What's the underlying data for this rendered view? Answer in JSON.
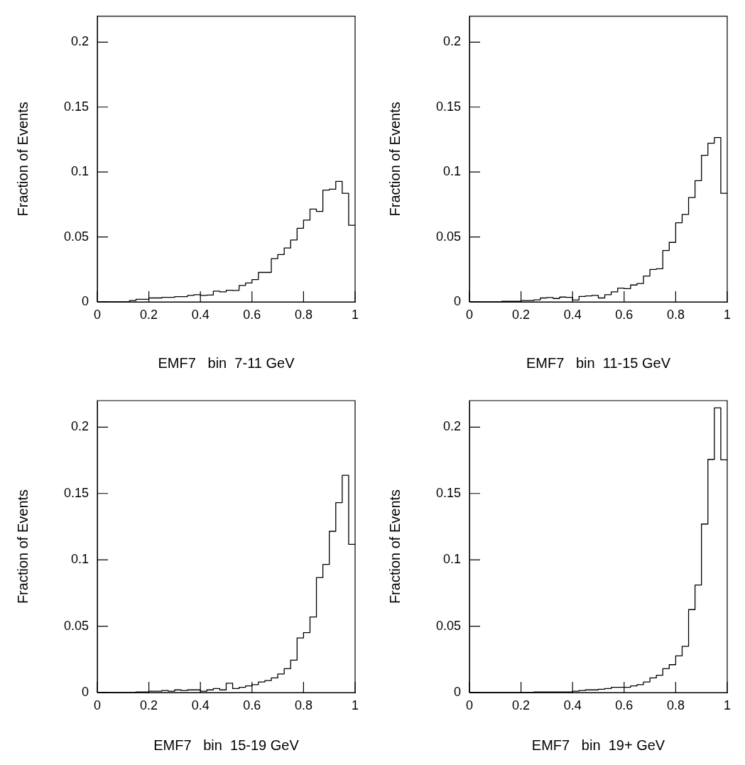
{
  "chart_data": [
    {
      "type": "histogram",
      "xlabel": "EMF7   bin  7-11 GeV",
      "ylabel": "Fraction of Events",
      "color": "#000000",
      "xlim": [
        0,
        1
      ],
      "ylim": [
        0,
        0.22
      ],
      "xticks": [
        0,
        0.2,
        0.4,
        0.6,
        0.8,
        1
      ],
      "yticks": [
        0,
        0.05,
        0.1,
        0.15,
        0.2
      ],
      "grid": false,
      "legend": false,
      "bins": [
        0,
        0.025,
        0.05,
        0.075,
        0.1,
        0.125,
        0.15,
        0.175,
        0.2,
        0.225,
        0.25,
        0.275,
        0.3,
        0.325,
        0.35,
        0.375,
        0.4,
        0.425,
        0.45,
        0.475,
        0.5,
        0.525,
        0.55,
        0.575,
        0.6,
        0.625,
        0.65,
        0.675,
        0.7,
        0.725,
        0.75,
        0.775,
        0.8,
        0.825,
        0.85,
        0.875,
        0.9,
        0.925,
        0.95,
        0.975,
        1
      ],
      "values": [
        0,
        0,
        0,
        0,
        0,
        0.001,
        0.002,
        0.002,
        0.003,
        0.003,
        0.0035,
        0.0035,
        0.004,
        0.004,
        0.005,
        0.0055,
        0.005,
        0.0053,
        0.0083,
        0.0077,
        0.009,
        0.0088,
        0.0127,
        0.0146,
        0.0172,
        0.0227,
        0.0227,
        0.0333,
        0.0364,
        0.0415,
        0.0477,
        0.0567,
        0.063,
        0.0715,
        0.0697,
        0.0861,
        0.0868,
        0.0928,
        0.0836,
        0.059
      ]
    },
    {
      "type": "histogram",
      "xlabel": "EMF7   bin  11-15 GeV",
      "ylabel": "Fraction of Events",
      "color": "#000000",
      "xlim": [
        0,
        1
      ],
      "ylim": [
        0,
        0.22
      ],
      "xticks": [
        0,
        0.2,
        0.4,
        0.6,
        0.8,
        1
      ],
      "yticks": [
        0,
        0.05,
        0.1,
        0.15,
        0.2
      ],
      "grid": false,
      "legend": false,
      "bins": [
        0,
        0.025,
        0.05,
        0.075,
        0.1,
        0.125,
        0.15,
        0.175,
        0.2,
        0.225,
        0.25,
        0.275,
        0.3,
        0.325,
        0.35,
        0.375,
        0.4,
        0.425,
        0.45,
        0.475,
        0.5,
        0.525,
        0.55,
        0.575,
        0.6,
        0.625,
        0.65,
        0.675,
        0.7,
        0.725,
        0.75,
        0.775,
        0.8,
        0.825,
        0.85,
        0.875,
        0.9,
        0.925,
        0.95,
        0.975,
        1
      ],
      "values": [
        0,
        0,
        0,
        0,
        0,
        0.0004,
        0.0004,
        0.0004,
        0.001,
        0.001,
        0.0016,
        0.003,
        0.0033,
        0.0026,
        0.0037,
        0.0035,
        0.0014,
        0.0042,
        0.0046,
        0.005,
        0.003,
        0.0055,
        0.0077,
        0.0106,
        0.0102,
        0.013,
        0.0141,
        0.0199,
        0.025,
        0.0255,
        0.0396,
        0.0458,
        0.0609,
        0.0673,
        0.0803,
        0.0933,
        0.1129,
        0.1222,
        0.1266,
        0.0836
      ]
    },
    {
      "type": "histogram",
      "xlabel": "EMF7   bin  15-19 GeV",
      "ylabel": "Fraction of Events",
      "color": "#000000",
      "xlim": [
        0,
        1
      ],
      "ylim": [
        0,
        0.22
      ],
      "xticks": [
        0,
        0.2,
        0.4,
        0.6,
        0.8,
        1
      ],
      "yticks": [
        0,
        0.05,
        0.1,
        0.15,
        0.2
      ],
      "grid": false,
      "legend": false,
      "bins": [
        0,
        0.025,
        0.05,
        0.075,
        0.1,
        0.125,
        0.15,
        0.175,
        0.2,
        0.225,
        0.25,
        0.275,
        0.3,
        0.325,
        0.35,
        0.375,
        0.4,
        0.425,
        0.45,
        0.475,
        0.5,
        0.525,
        0.55,
        0.575,
        0.6,
        0.625,
        0.65,
        0.675,
        0.7,
        0.725,
        0.75,
        0.775,
        0.8,
        0.825,
        0.85,
        0.875,
        0.9,
        0.925,
        0.95,
        0.975,
        1
      ],
      "values": [
        0,
        0,
        0,
        0,
        0,
        0,
        0.0005,
        0.0005,
        0.001,
        0.001,
        0.0015,
        0.001,
        0.002,
        0.0015,
        0.002,
        0.002,
        0.001,
        0.002,
        0.003,
        0.002,
        0.007,
        0.003,
        0.004,
        0.005,
        0.006,
        0.008,
        0.009,
        0.011,
        0.014,
        0.018,
        0.0244,
        0.0412,
        0.0452,
        0.0569,
        0.0866,
        0.0965,
        0.1215,
        0.1431,
        0.1637,
        0.1117
      ]
    },
    {
      "type": "histogram",
      "xlabel": "EMF7   bin  19+ GeV",
      "ylabel": "Fraction of Events",
      "color": "#000000",
      "xlim": [
        0,
        1
      ],
      "ylim": [
        0,
        0.22
      ],
      "xticks": [
        0,
        0.2,
        0.4,
        0.6,
        0.8,
        1
      ],
      "yticks": [
        0,
        0.05,
        0.1,
        0.15,
        0.2
      ],
      "grid": false,
      "legend": false,
      "bins": [
        0,
        0.025,
        0.05,
        0.075,
        0.1,
        0.125,
        0.15,
        0.175,
        0.2,
        0.225,
        0.25,
        0.275,
        0.3,
        0.325,
        0.35,
        0.375,
        0.4,
        0.425,
        0.45,
        0.475,
        0.5,
        0.525,
        0.55,
        0.575,
        0.6,
        0.625,
        0.65,
        0.675,
        0.7,
        0.725,
        0.75,
        0.775,
        0.8,
        0.825,
        0.85,
        0.875,
        0.9,
        0.925,
        0.95,
        0.975,
        1
      ],
      "values": [
        0,
        0,
        0,
        0,
        0,
        0,
        0,
        0,
        0,
        0,
        0.0005,
        0.0005,
        0.0005,
        0.0005,
        0.0005,
        0.0005,
        0.001,
        0.0015,
        0.002,
        0.002,
        0.0025,
        0.003,
        0.004,
        0.004,
        0.004,
        0.005,
        0.006,
        0.008,
        0.011,
        0.013,
        0.018,
        0.021,
        0.0276,
        0.0349,
        0.0625,
        0.081,
        0.127,
        0.1757,
        0.2146,
        0.1754
      ]
    }
  ]
}
